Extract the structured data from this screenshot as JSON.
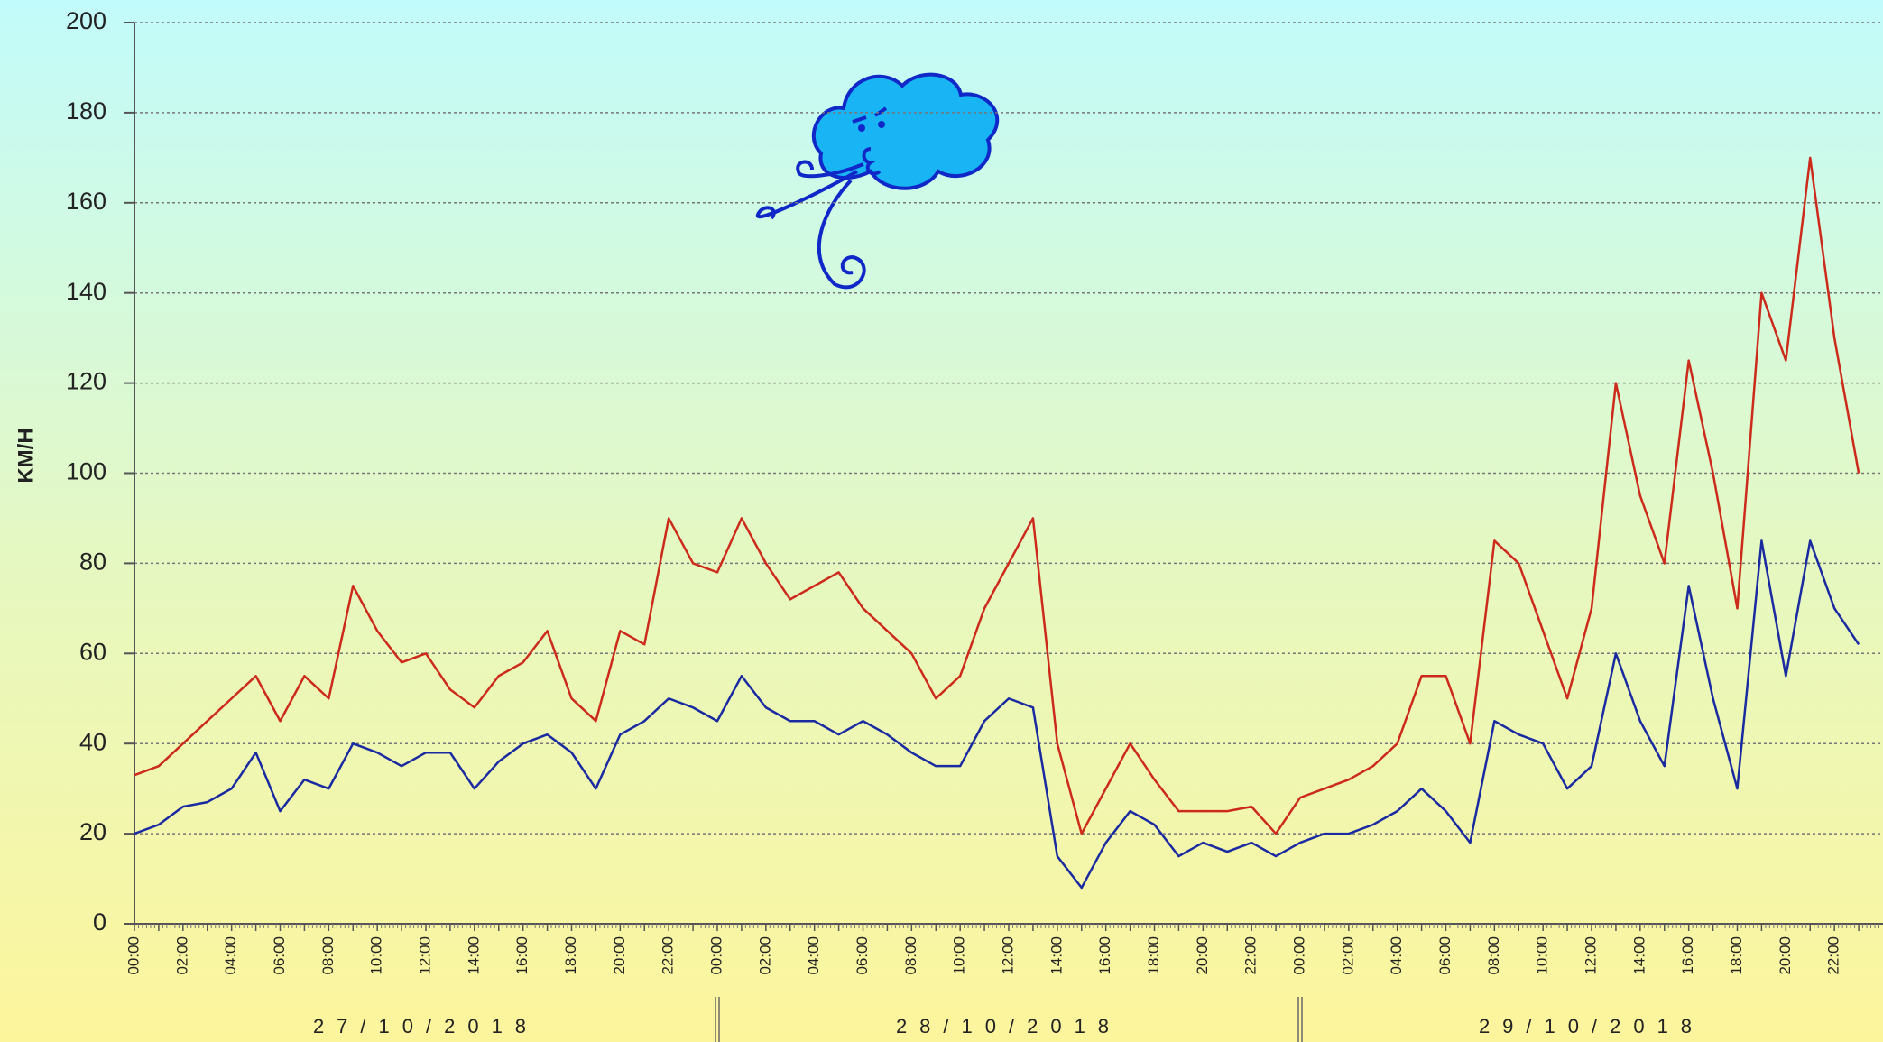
{
  "chart_data": {
    "type": "line",
    "y_label": "KM/H",
    "categories": [
      "00:00",
      null,
      "02:00",
      null,
      "04:00",
      null,
      "06:00",
      null,
      "08:00",
      null,
      "10:00",
      null,
      "12:00",
      null,
      "14:00",
      null,
      "16:00",
      null,
      "18:00",
      null,
      "20:00",
      null,
      "22:00",
      null,
      "00:00",
      null,
      "02:00",
      null,
      "04:00",
      null,
      "06:00",
      null,
      "08:00",
      null,
      "10:00",
      null,
      "12:00",
      null,
      "14:00",
      null,
      "16:00",
      null,
      "18:00",
      null,
      "20:00",
      null,
      "22:00",
      null,
      "00:00",
      null,
      "02:00",
      null,
      "04:00",
      null,
      "06:00",
      null,
      "08:00",
      null,
      "10:00",
      null,
      "12:00",
      null,
      "14:00",
      null,
      "16:00",
      null,
      "18:00",
      null,
      "20:00",
      null,
      "22:00",
      null
    ],
    "dates": [
      "27/10/2018",
      "28/10/2018",
      "29/10/2018"
    ],
    "series": [
      {
        "color": "#cc2a1a",
        "values": [
          33,
          35,
          40,
          45,
          50,
          55,
          45,
          55,
          50,
          75,
          65,
          58,
          60,
          52,
          48,
          55,
          58,
          65,
          50,
          45,
          65,
          62,
          90,
          80,
          78,
          90,
          80,
          72,
          75,
          78,
          70,
          65,
          60,
          50,
          55,
          70,
          80,
          90,
          40,
          20,
          30,
          40,
          32,
          25,
          25,
          25,
          26,
          20,
          28,
          30,
          32,
          35,
          40,
          55,
          55,
          40,
          85,
          80,
          65,
          50,
          70,
          120,
          95,
          80,
          125,
          100,
          70,
          140,
          125,
          170,
          130,
          100
        ]
      },
      {
        "color": "#1a2aa0",
        "values": [
          20,
          22,
          26,
          27,
          30,
          38,
          25,
          32,
          30,
          40,
          38,
          35,
          38,
          38,
          30,
          36,
          40,
          42,
          38,
          30,
          42,
          45,
          50,
          48,
          45,
          55,
          48,
          45,
          45,
          42,
          45,
          42,
          38,
          35,
          35,
          45,
          50,
          48,
          15,
          8,
          18,
          25,
          22,
          15,
          18,
          16,
          18,
          15,
          18,
          20,
          20,
          22,
          25,
          30,
          25,
          18,
          45,
          42,
          40,
          30,
          35,
          60,
          45,
          35,
          75,
          50,
          30,
          85,
          55,
          85,
          70,
          62
        ]
      }
    ],
    "ylim": [
      0,
      200
    ],
    "yticks": [
      0,
      20,
      40,
      60,
      80,
      100,
      120,
      140,
      160,
      180,
      200
    ],
    "grid": true
  }
}
